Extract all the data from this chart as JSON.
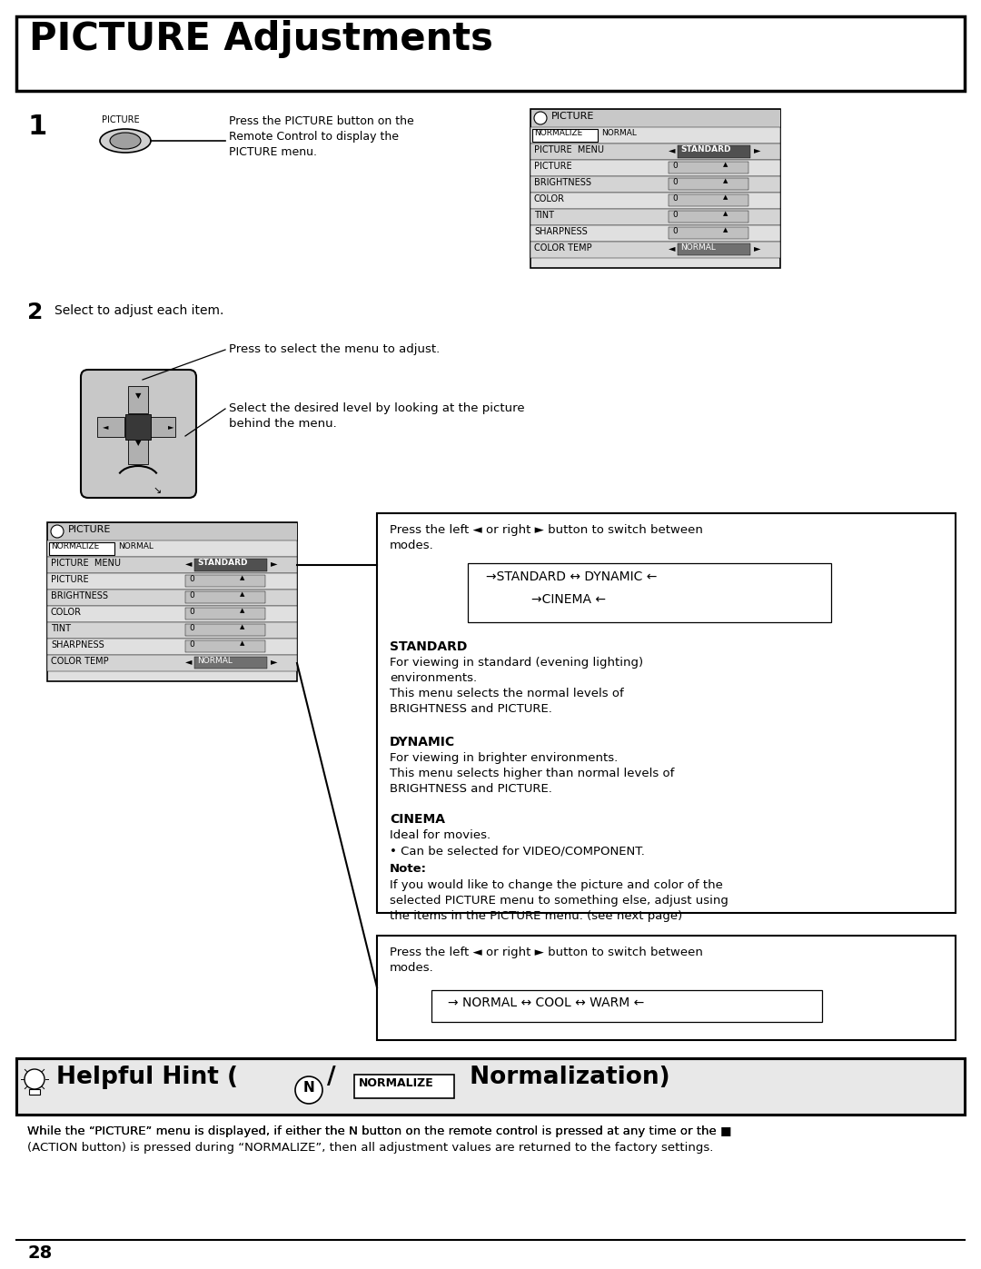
{
  "title": "PICTURE Adjustments",
  "bg_color": "#ffffff",
  "page_number": "28",
  "step1_label": "PICTURE",
  "step1_text": "Press the PICTURE button on the\nRemote Control to display the\nPICTURE menu.",
  "step2_text": "Select to adjust each item.",
  "callout1": "Press to select the menu to adjust.",
  "callout2": "Select the desired level by looking at the picture\nbehind the menu.",
  "menu_rows": [
    "PICTURE",
    "BRIGHTNESS",
    "COLOR",
    "TINT",
    "SHARPNESS"
  ],
  "menu_header": "PICTURE",
  "menu_normalize": "NORMALIZE",
  "menu_normalize_val": "NORMAL",
  "menu_picture_menu": "PICTURE MENU",
  "menu_picture_menu_val": "STANDARD",
  "menu_color_temp_val": "NORMAL",
  "box1_text_l1": "Press the left ◄ or right ► button to switch between",
  "box1_text_l2": "modes.",
  "modes_line1": "→STANDARD ↔ DYNAMIC ←",
  "modes_line2": "→CINEMA ←",
  "standard_title": "STANDARD",
  "standard_body": "For viewing in standard (evening lighting)\nenvironments.\nThis menu selects the normal levels of\nBRIGHTNESS and PICTURE.",
  "dynamic_title": "DYNAMIC",
  "dynamic_body": "For viewing in brighter environments.\nThis menu selects higher than normal levels of\nBRIGHTNESS and PICTURE.",
  "cinema_title": "CINEMA",
  "cinema_body": "Ideal for movies.\n• Can be selected for VIDEO/COMPONENT.",
  "note_title": "Note:",
  "note_body": "If you would like to change the picture and color of the\nselected PICTURE menu to something else, adjust using\nthe items in the PICTURE menu. (see next page)",
  "box2_text_l1": "Press the left ◄ or right ► button to switch between",
  "box2_text_l2": "modes.",
  "modes2_line": "→ NORMAL ↔ COOL ↔ WARM ←",
  "hint_text1": "Helpful Hint (",
  "hint_N": "N",
  "hint_sep": "/",
  "hint_normalize": "NORMALIZE",
  "hint_text2": "Normalization)",
  "hint_body_l1": "While the “PICTURE” menu is displayed, if either the N button on the remote control is pressed at any time or the",
  "hint_body_l2": "(ACTION button) is pressed during “NORMALIZE”, then all adjustment values are returned to the factory settings."
}
